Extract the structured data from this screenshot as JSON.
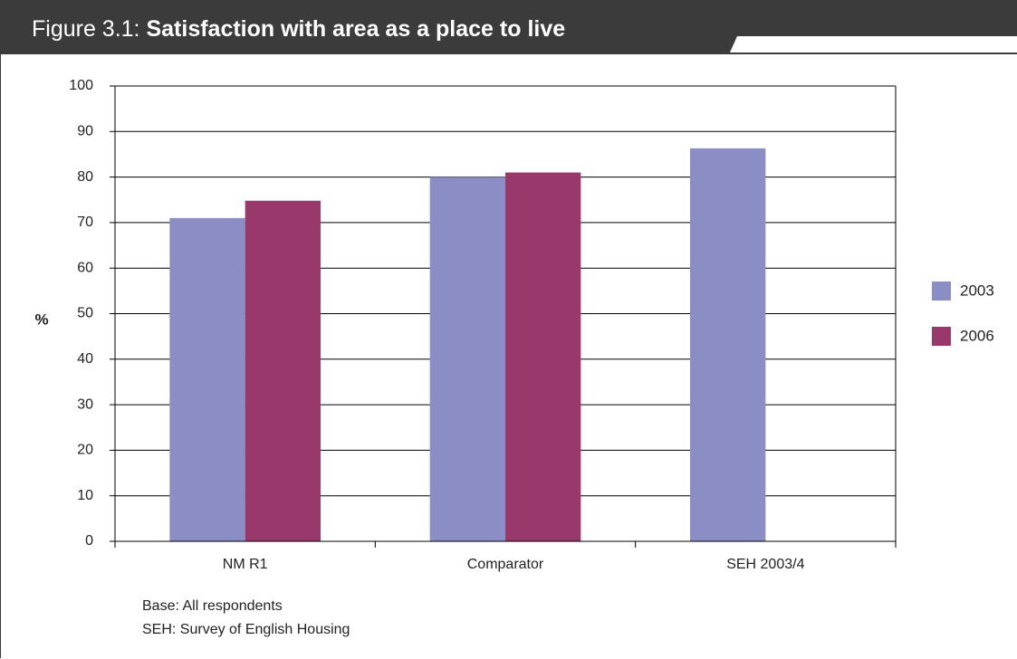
{
  "figure": {
    "label": "Figure 3.1:",
    "title": "Satisfaction with area as a place to live"
  },
  "notes": {
    "base": "Base: All respondents",
    "abbrev": "SEH: Survey of English Housing"
  },
  "colors": {
    "title_bar": "#3b3b3b",
    "series_2003": "#8a8ec4",
    "series_2006": "#98386b",
    "grid": "#000000"
  },
  "chart_data": {
    "type": "bar",
    "title": "Satisfaction with area as a place to live",
    "xlabel": "",
    "ylabel": "%",
    "ylim": [
      0,
      100
    ],
    "yticks": [
      0,
      10,
      20,
      30,
      40,
      50,
      60,
      70,
      80,
      90,
      100
    ],
    "grid": true,
    "legend_position": "right",
    "categories": [
      "NM R1",
      "Comparator",
      "SEH 2003/4"
    ],
    "series": [
      {
        "name": "2003",
        "color": "#8a8ec4",
        "values": [
          71,
          80,
          86.3
        ]
      },
      {
        "name": "2006",
        "color": "#98386b",
        "values": [
          74.8,
          81,
          null
        ]
      }
    ]
  }
}
